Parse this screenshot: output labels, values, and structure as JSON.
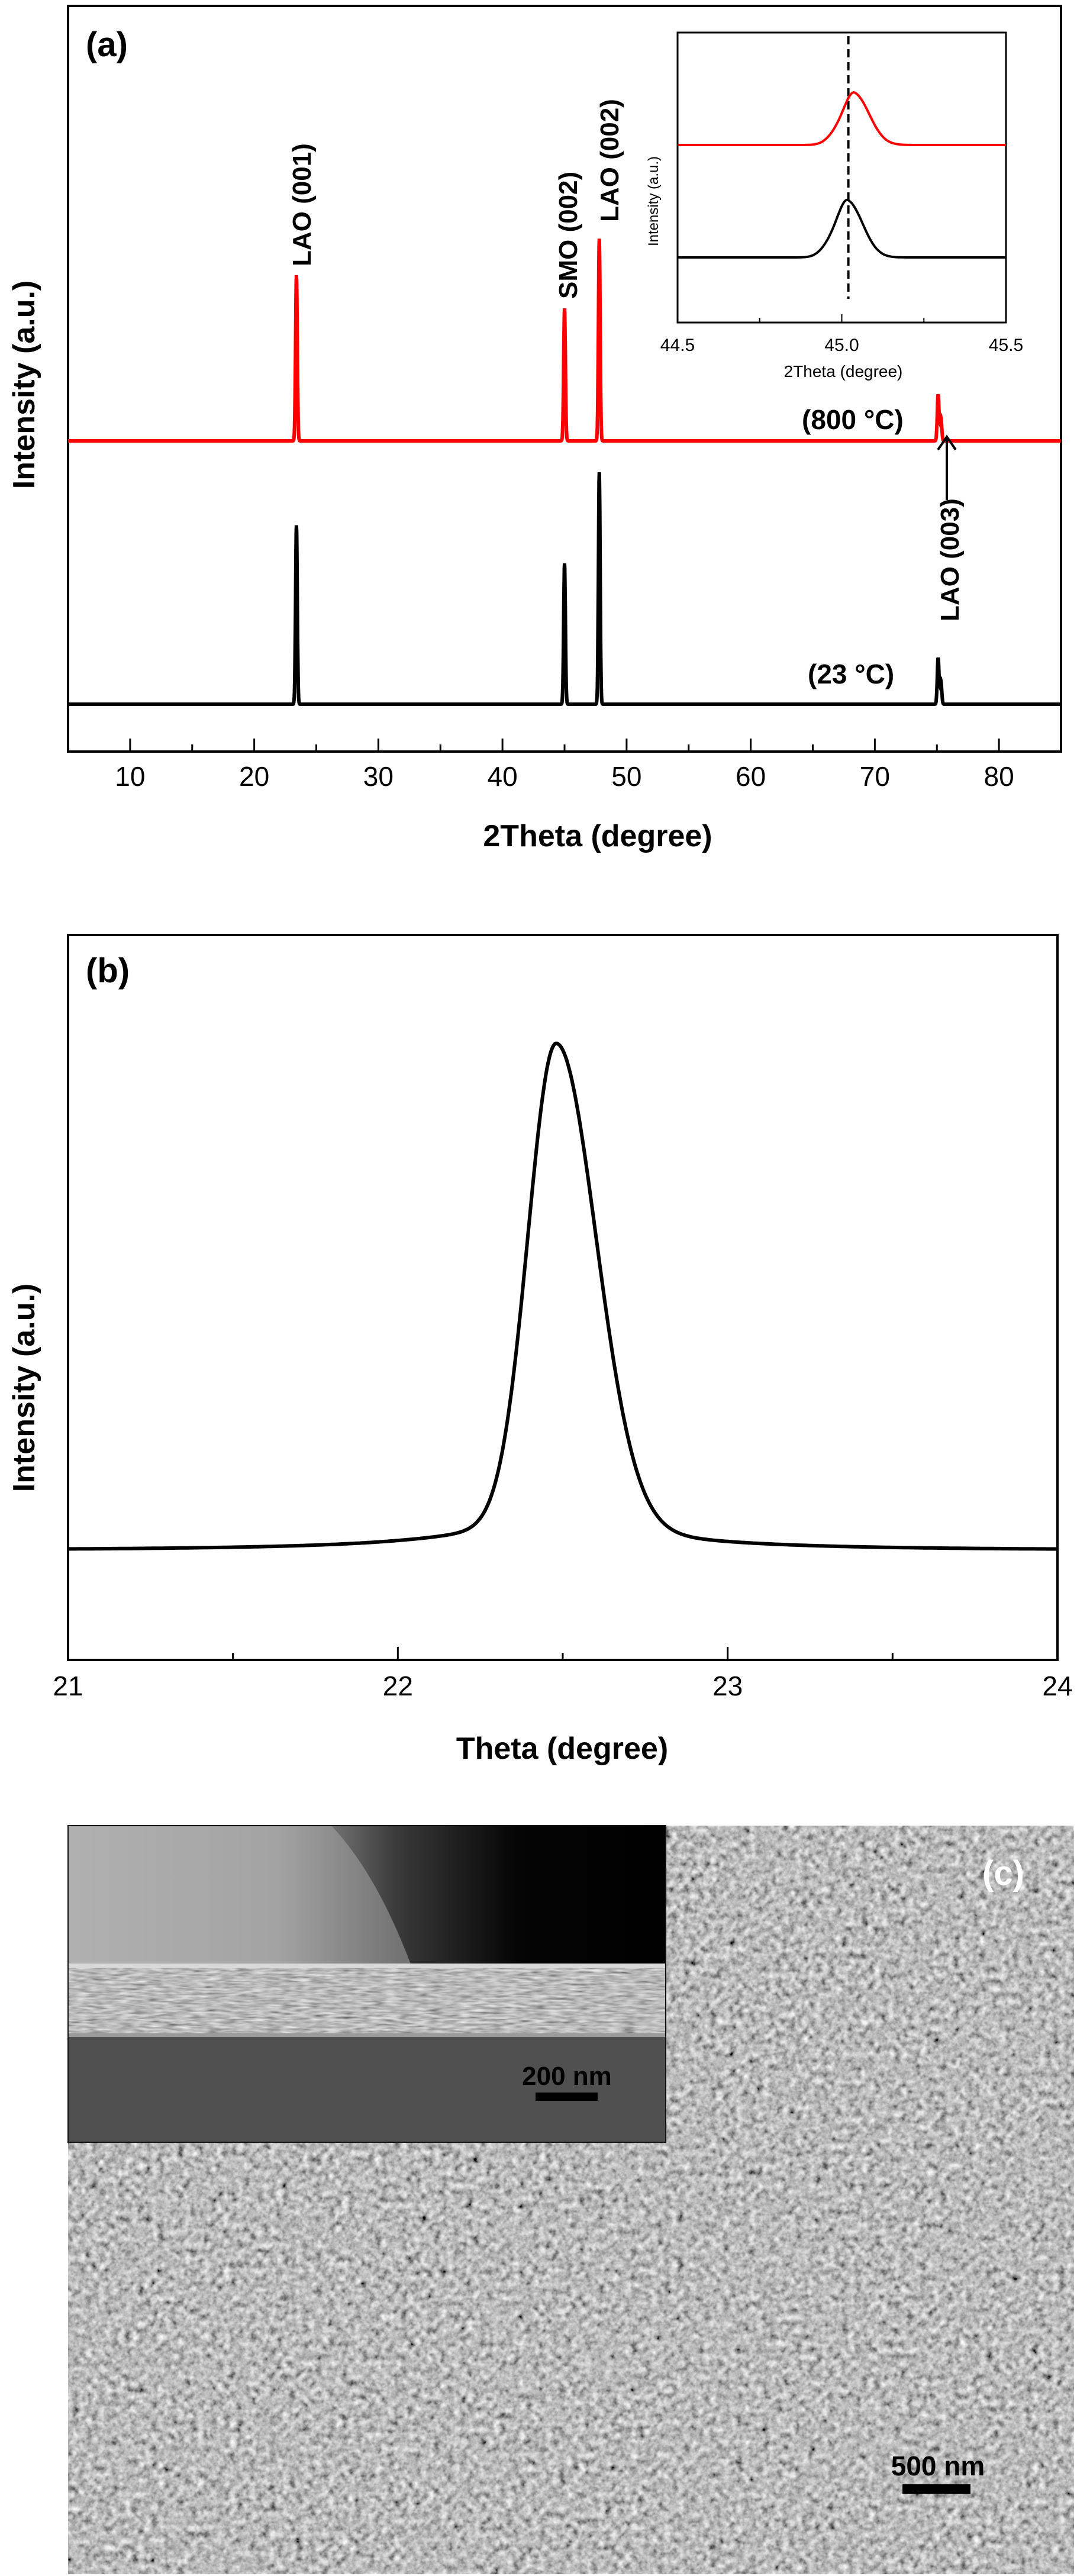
{
  "chart_data": [
    {
      "panel_label": "(a)",
      "type": "line",
      "xlabel": "2Theta (degree)",
      "ylabel": "Intensity (a.u.)",
      "xlim": [
        5,
        85
      ],
      "xticks": [
        10,
        20,
        30,
        40,
        50,
        60,
        70,
        80
      ],
      "y_scale": "arbitrary units, offset traces",
      "grid": false,
      "series": [
        {
          "name": "(800 °C)",
          "color": "#ff0000",
          "peaks": [
            {
              "x": 23.4,
              "height": 1.0
            },
            {
              "x": 45.0,
              "height": 0.8
            },
            {
              "x": 47.8,
              "height": 1.22
            },
            {
              "x": 75.1,
              "height": 0.28
            }
          ]
        },
        {
          "name": "(23 °C)",
          "color": "#000000",
          "peaks": [
            {
              "x": 23.4,
              "height": 1.08
            },
            {
              "x": 45.0,
              "height": 0.85
            },
            {
              "x": 47.8,
              "height": 1.4
            },
            {
              "x": 75.1,
              "height": 0.28
            }
          ]
        }
      ],
      "annotations": [
        {
          "text": "LAO (001)",
          "x": 23.4
        },
        {
          "text": "SMO (002)",
          "x": 45.0
        },
        {
          "text": "LAO (002)",
          "x": 47.8
        },
        {
          "text": "LAO (003)",
          "x": 75.1
        }
      ],
      "series_labels": [
        "(800 °C)",
        "(23 °C)"
      ],
      "inset": {
        "type": "line",
        "xlabel": "2Theta (degree)",
        "ylabel": "Intensity (a.u.)",
        "xlim": [
          44.5,
          45.5
        ],
        "xticks": [
          "44.5",
          "45.0",
          "45.5"
        ],
        "reference_line_x": 45.02,
        "series": [
          {
            "name": "800",
            "color": "#ff0000",
            "peak_x": 45.04,
            "height": 0.32
          },
          {
            "name": "23",
            "color": "#000000",
            "peak_x": 45.02,
            "height": 0.35
          }
        ]
      }
    },
    {
      "panel_label": "(b)",
      "type": "line",
      "xlabel": "Theta (degree)",
      "ylabel": "Intensity (a.u.)",
      "xlim": [
        21,
        24
      ],
      "xticks": [
        21,
        22,
        23,
        24
      ],
      "grid": false,
      "series": [
        {
          "color": "#000000",
          "peak_x": 22.48,
          "baseline": 0.0,
          "peak_height": 1.0
        }
      ]
    }
  ],
  "micrograph": {
    "panel_label": "(c)",
    "inset_scale_label": "200 nm",
    "main_scale_label": "500 nm"
  }
}
